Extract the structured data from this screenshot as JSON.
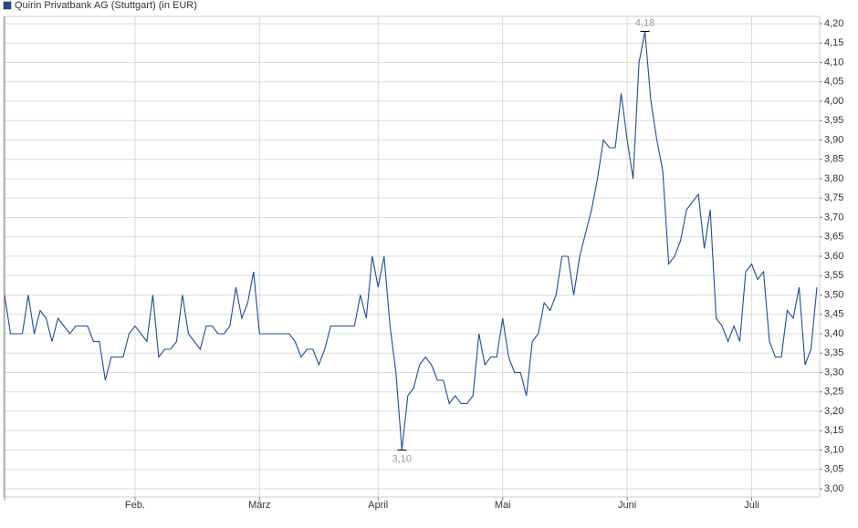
{
  "chart_data": {
    "type": "line",
    "categories": [
      null,
      null,
      null,
      null,
      null,
      null,
      null,
      null,
      null,
      null,
      null,
      null,
      null,
      null,
      null,
      null,
      null,
      null,
      null,
      null,
      null,
      null,
      "Feb.",
      null,
      null,
      null,
      null,
      null,
      null,
      null,
      null,
      null,
      null,
      null,
      null,
      null,
      null,
      null,
      null,
      null,
      null,
      null,
      null,
      "März",
      null,
      null,
      null,
      null,
      null,
      null,
      null,
      null,
      null,
      null,
      null,
      null,
      null,
      null,
      null,
      null,
      null,
      null,
      null,
      "April",
      null,
      null,
      null,
      null,
      null,
      null,
      null,
      null,
      null,
      null,
      null,
      null,
      null,
      null,
      null,
      null,
      null,
      null,
      null,
      null,
      "Mai",
      null,
      null,
      null,
      null,
      null,
      null,
      null,
      null,
      null,
      null,
      null,
      null,
      null,
      null,
      null,
      null,
      null,
      null,
      null,
      null,
      "Juni",
      null,
      null,
      null,
      null,
      null,
      null,
      null,
      null,
      null,
      null,
      null,
      null,
      null,
      null,
      null,
      null,
      null,
      null,
      null,
      null,
      "Juli",
      null,
      null,
      null,
      null,
      null,
      null,
      null,
      null,
      null,
      null,
      null
    ],
    "series": [
      {
        "name": "Quirin Privatbank AG (Stuttgart) (in EUR)",
        "color": "#1c4c9c",
        "values": [
          3.5,
          3.4,
          3.4,
          3.4,
          3.5,
          3.4,
          3.46,
          3.44,
          3.38,
          3.44,
          3.42,
          3.4,
          3.42,
          3.42,
          3.42,
          3.38,
          3.38,
          3.28,
          3.34,
          3.34,
          3.34,
          3.4,
          3.42,
          3.4,
          3.38,
          3.5,
          3.34,
          3.36,
          3.36,
          3.38,
          3.5,
          3.4,
          3.38,
          3.36,
          3.42,
          3.42,
          3.4,
          3.4,
          3.42,
          3.52,
          3.44,
          3.48,
          3.56,
          3.4,
          3.4,
          3.4,
          3.4,
          3.4,
          3.4,
          3.38,
          3.34,
          3.36,
          3.36,
          3.32,
          3.36,
          3.42,
          3.42,
          3.42,
          3.42,
          3.42,
          3.5,
          3.44,
          3.6,
          3.52,
          3.6,
          3.42,
          3.3,
          3.1,
          3.24,
          3.26,
          3.32,
          3.34,
          3.32,
          3.28,
          3.28,
          3.22,
          3.24,
          3.22,
          3.22,
          3.24,
          3.4,
          3.32,
          3.34,
          3.34,
          3.44,
          3.34,
          3.3,
          3.3,
          3.24,
          3.38,
          3.4,
          3.48,
          3.46,
          3.5,
          3.6,
          3.6,
          3.5,
          3.6,
          3.66,
          3.72,
          3.8,
          3.9,
          3.88,
          3.88,
          4.02,
          3.9,
          3.8,
          4.1,
          4.18,
          4.0,
          3.9,
          3.82,
          3.58,
          3.6,
          3.64,
          3.72,
          3.74,
          3.76,
          3.62,
          3.72,
          3.44,
          3.42,
          3.38,
          3.42,
          3.38,
          3.56,
          3.58,
          3.54,
          3.56,
          3.38,
          3.34,
          3.34,
          3.46,
          3.44,
          3.52,
          3.32,
          3.36,
          3.52
        ],
        "value_labels": [
          null,
          null,
          null,
          null,
          null,
          null,
          null,
          null,
          null,
          null,
          null,
          null,
          null,
          null,
          null,
          null,
          null,
          null,
          null,
          null,
          null,
          null,
          null,
          null,
          null,
          null,
          null,
          null,
          null,
          null,
          null,
          null,
          null,
          null,
          null,
          null,
          null,
          null,
          null,
          null,
          null,
          null,
          null,
          null,
          null,
          null,
          null,
          null,
          null,
          null,
          null,
          null,
          null,
          null,
          null,
          null,
          null,
          null,
          null,
          null,
          null,
          null,
          null,
          null,
          null,
          null,
          null,
          "3,10",
          null,
          null,
          null,
          null,
          null,
          null,
          null,
          null,
          null,
          null,
          null,
          null,
          null,
          null,
          null,
          null,
          null,
          null,
          null,
          null,
          null,
          null,
          null,
          null,
          null,
          null,
          null,
          null,
          null,
          null,
          null,
          null,
          null,
          null,
          null,
          null,
          null,
          null,
          null,
          null,
          "4,18",
          null,
          null,
          null,
          null,
          null,
          null,
          null,
          null,
          null,
          null,
          null,
          null,
          null,
          null,
          null,
          null,
          null,
          null,
          null,
          null,
          null,
          null,
          null,
          null,
          null,
          null,
          null,
          null,
          null
        ]
      }
    ],
    "ylim": [
      3.0,
      4.2
    ],
    "yticks": [
      {
        "value": 3.0,
        "label": "3,00"
      },
      {
        "value": 3.05,
        "label": "3,05"
      },
      {
        "value": 3.1,
        "label": "3,10"
      },
      {
        "value": 3.15,
        "label": "3,15"
      },
      {
        "value": 3.2,
        "label": "3,20"
      },
      {
        "value": 3.25,
        "label": "3,25"
      },
      {
        "value": 3.3,
        "label": "3,30"
      },
      {
        "value": 3.35,
        "label": "3,35"
      },
      {
        "value": 3.4,
        "label": "3,40"
      },
      {
        "value": 3.45,
        "label": "3,45"
      },
      {
        "value": 3.5,
        "label": "3,50"
      },
      {
        "value": 3.55,
        "label": "3,55"
      },
      {
        "value": 3.6,
        "label": "3,60"
      },
      {
        "value": 3.65,
        "label": "3,65"
      },
      {
        "value": 3.7,
        "label": "3,70"
      },
      {
        "value": 3.75,
        "label": "3,75"
      },
      {
        "value": 3.8,
        "label": "3,80"
      },
      {
        "value": 3.85,
        "label": "3,85"
      },
      {
        "value": 3.9,
        "label": "3,90"
      },
      {
        "value": 3.95,
        "label": "3,95"
      },
      {
        "value": 4.0,
        "label": "4,00"
      },
      {
        "value": 4.05,
        "label": "4,05"
      },
      {
        "value": 4.1,
        "label": "4,10"
      },
      {
        "value": 4.15,
        "label": "4,15"
      },
      {
        "value": 4.2,
        "label": "4,20"
      }
    ],
    "grid": true,
    "legend": "top-left"
  }
}
